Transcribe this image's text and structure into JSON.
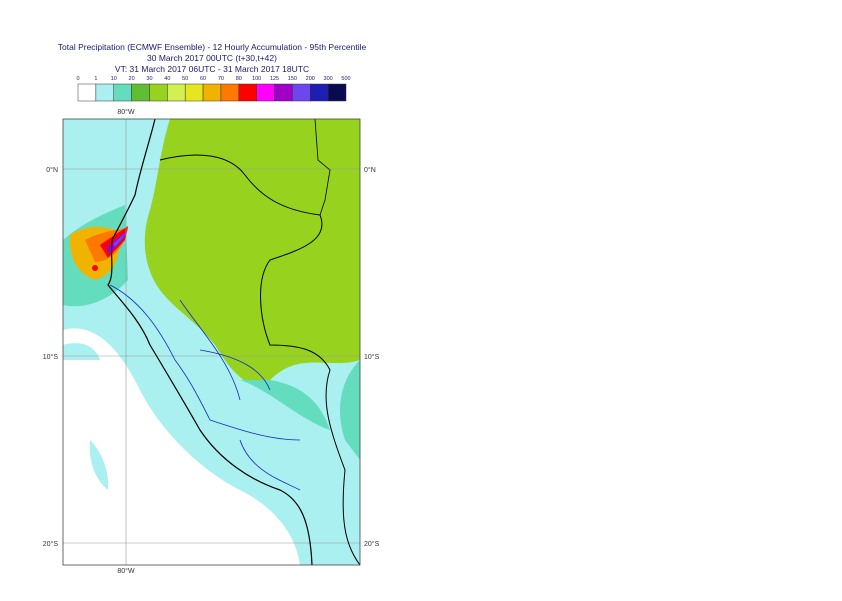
{
  "title": {
    "lines": [
      "Total Precipitation (ECMWF Ensemble) - 12 Hourly Accumulation - 95th Percentile",
      "30 March 2017 00UTC (t+30,t+42)",
      "VT: 31 March 2017 06UTC - 31 March 2017 18UTC"
    ]
  },
  "legend": {
    "levels": [
      "0",
      "1",
      "10",
      "20",
      "30",
      "40",
      "50",
      "60",
      "70",
      "80",
      "100",
      "125",
      "150",
      "200",
      "300",
      "500"
    ],
    "colors": [
      "#ffffff",
      "#aaf0f0",
      "#64dcbe",
      "#5fbe32",
      "#96d21e",
      "#d2f050",
      "#e6e61e",
      "#f0b400",
      "#ff7800",
      "#ff0000",
      "#ff00ff",
      "#a000c8",
      "#6e46f0",
      "#1e1eb4",
      "#0a0a50"
    ]
  },
  "map": {
    "lon_labels": [
      "80°W"
    ],
    "lat_labels": [
      "0°N",
      "10°S",
      "20°S"
    ]
  }
}
